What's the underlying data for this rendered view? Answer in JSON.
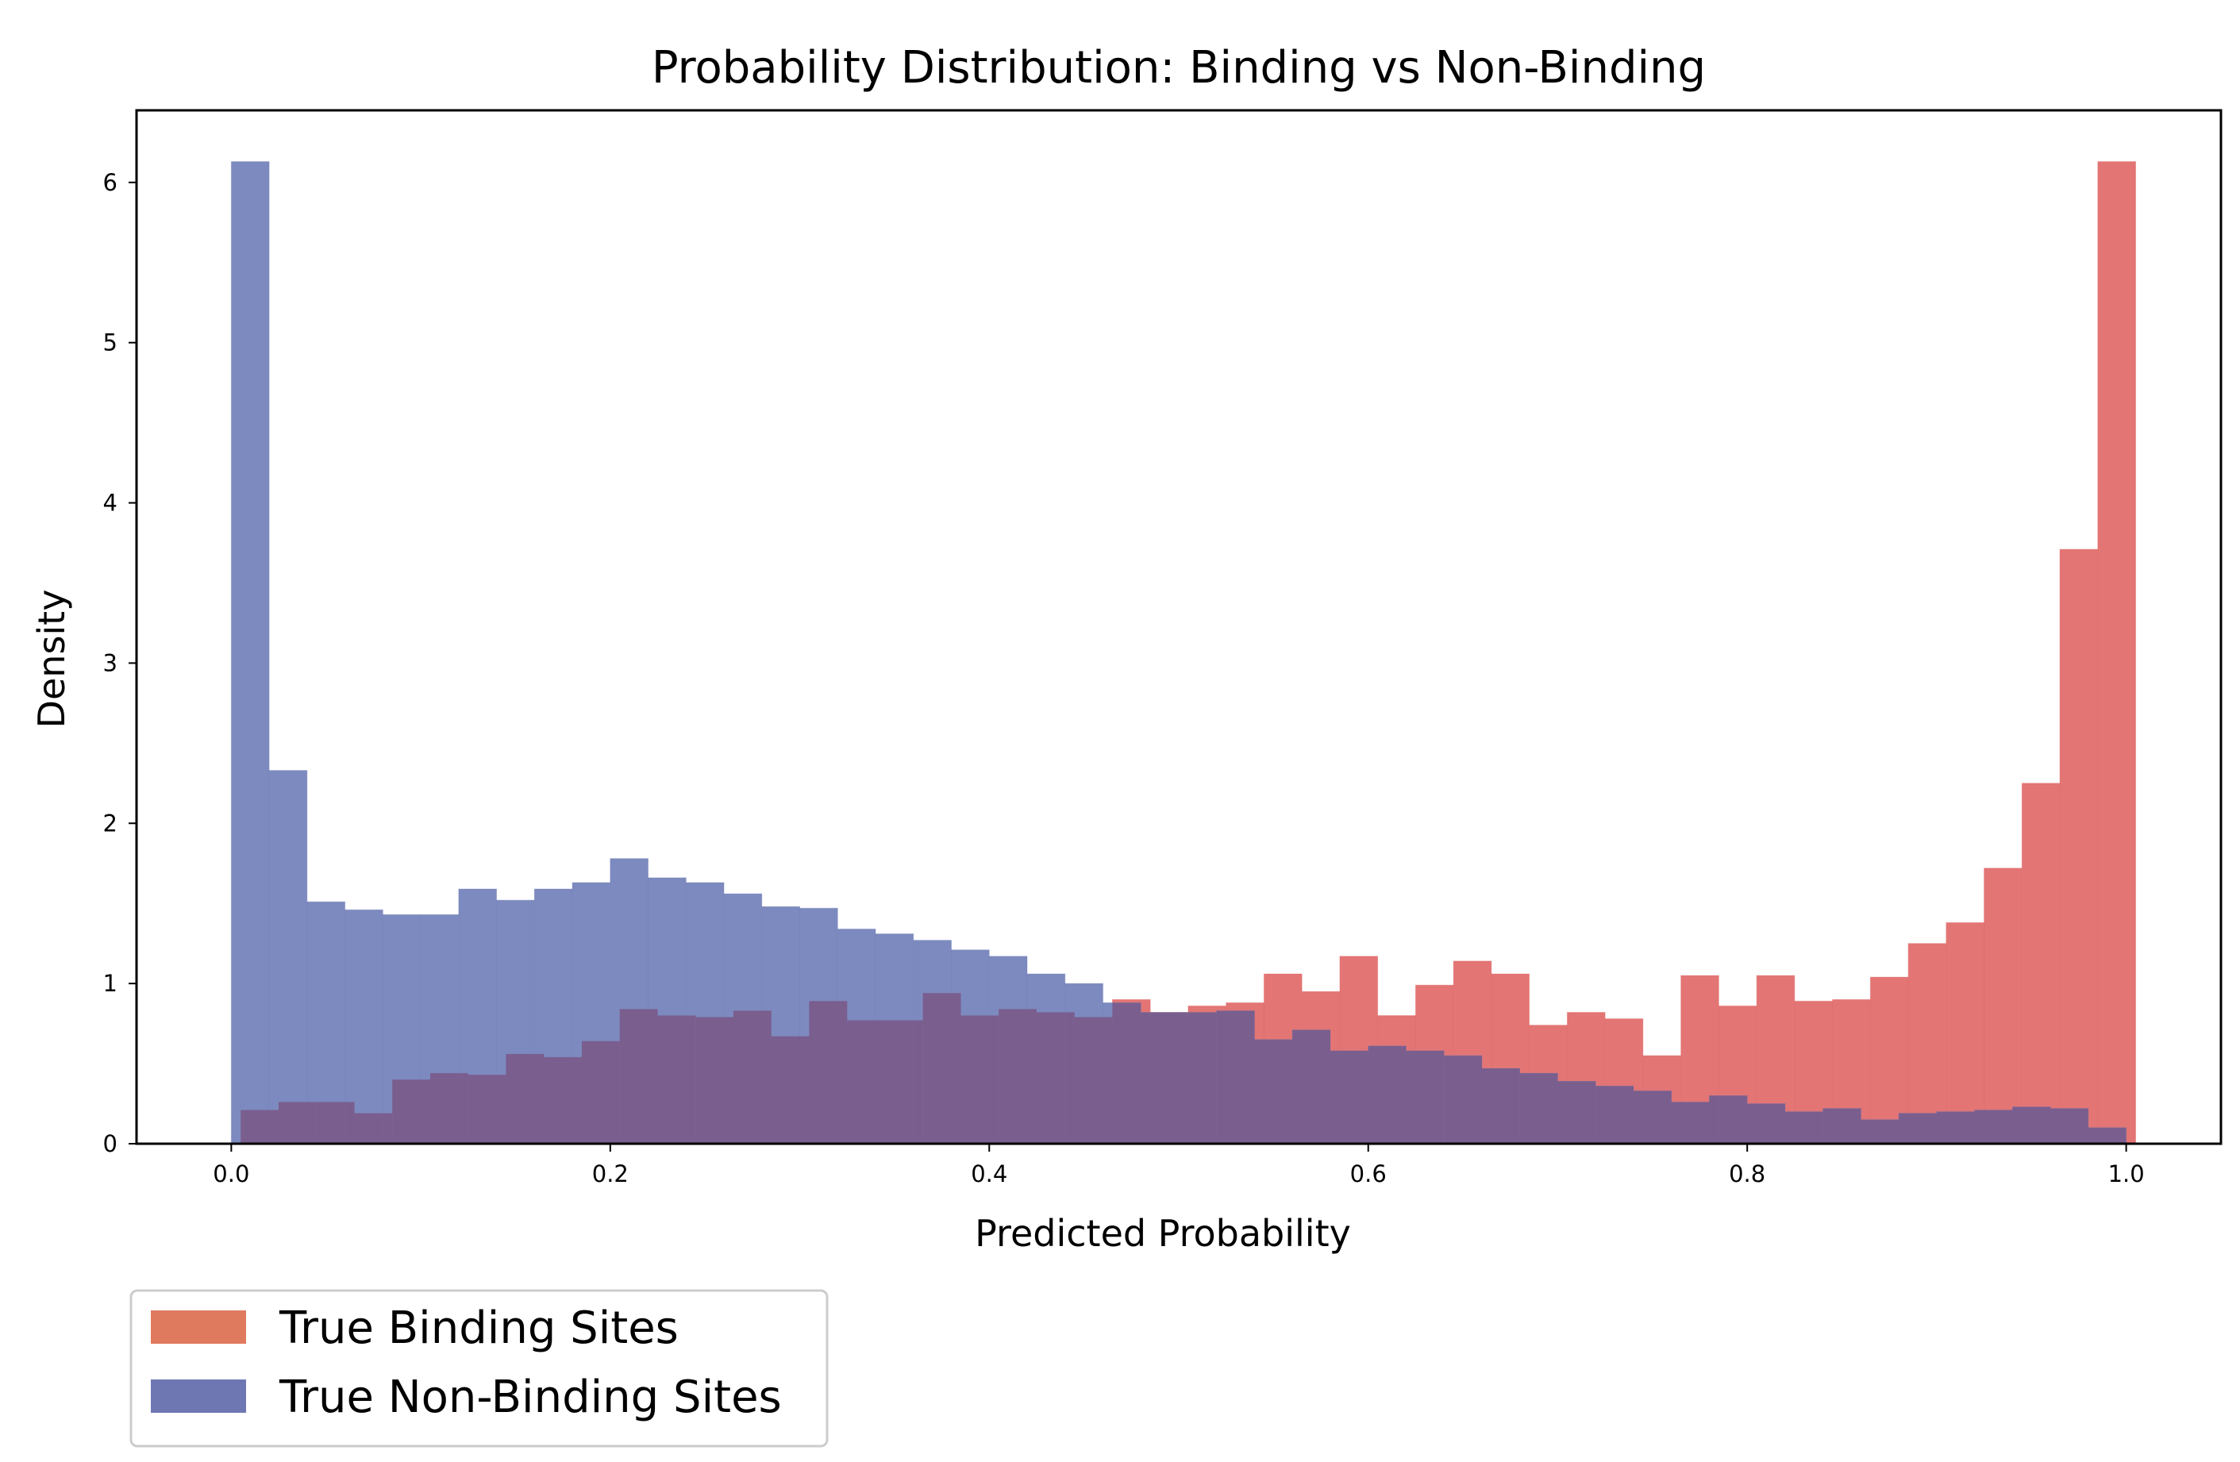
{
  "colors": {
    "binding": "#e06666",
    "non_binding": "#6f7db8",
    "binding_legend": "#e07a5f",
    "non_binding_legend": "#6f77b3",
    "axis": "#000000"
  },
  "chart_data": {
    "type": "bar",
    "title": "Probability Distribution: Binding vs Non-Binding",
    "xlabel": "Predicted Probability",
    "ylabel": "Density",
    "xlim": [
      -0.05,
      1.05
    ],
    "ylim": [
      0,
      6.45
    ],
    "xticks": [
      "0.0",
      "0.2",
      "0.4",
      "0.6",
      "0.8",
      "1.0"
    ],
    "yticks": [
      "0",
      "1",
      "2",
      "3",
      "4",
      "5",
      "6"
    ],
    "grid": false,
    "legend_placement": "below-left",
    "series": [
      {
        "name": "True Binding Sites",
        "x_start": 0.005,
        "bin_width": 0.02,
        "values": [
          0.21,
          0.26,
          0.26,
          0.19,
          0.4,
          0.44,
          0.43,
          0.56,
          0.54,
          0.64,
          0.84,
          0.8,
          0.79,
          0.83,
          0.67,
          0.89,
          0.77,
          0.77,
          0.94,
          0.8,
          0.84,
          0.82,
          0.79,
          0.9,
          0.82,
          0.86,
          0.88,
          1.06,
          0.95,
          1.17,
          0.8,
          0.99,
          1.14,
          1.06,
          0.74,
          0.82,
          0.78,
          0.55,
          1.05,
          0.86,
          1.05,
          0.89,
          0.9,
          1.04,
          1.25,
          1.38,
          1.72,
          2.25,
          3.71,
          6.13
        ]
      },
      {
        "name": "True Non-Binding Sites",
        "x_start": 0.0,
        "bin_width": 0.02,
        "values": [
          6.13,
          2.33,
          1.51,
          1.46,
          1.43,
          1.43,
          1.59,
          1.52,
          1.59,
          1.63,
          1.78,
          1.66,
          1.63,
          1.56,
          1.48,
          1.47,
          1.34,
          1.31,
          1.27,
          1.21,
          1.17,
          1.06,
          1.0,
          0.88,
          0.82,
          0.82,
          0.83,
          0.65,
          0.71,
          0.58,
          0.61,
          0.58,
          0.55,
          0.47,
          0.44,
          0.39,
          0.36,
          0.33,
          0.26,
          0.3,
          0.25,
          0.2,
          0.22,
          0.15,
          0.19,
          0.2,
          0.21,
          0.23,
          0.22,
          0.1
        ]
      }
    ]
  }
}
